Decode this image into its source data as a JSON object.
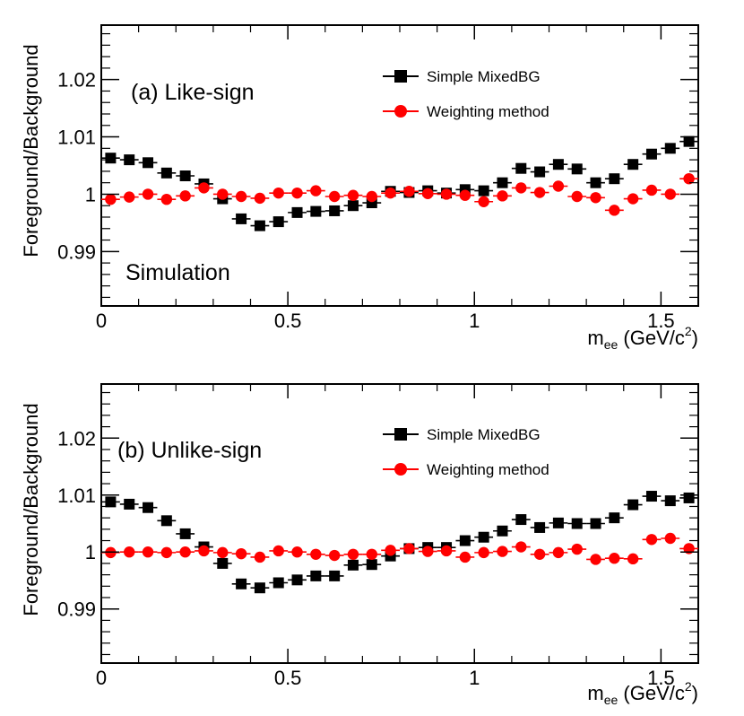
{
  "chart_data": [
    {
      "type": "scatter",
      "panel_label": "(a) Like-sign",
      "annotation": "Simulation",
      "xlabel": {
        "main": "m",
        "sub": "ee",
        "units_pre": " (GeV/c",
        "sup": "2",
        "units_post": ")"
      },
      "ylabel": "Foreground/Background",
      "xlim": [
        0,
        1.6
      ],
      "ylim": [
        0.9805,
        1.0295
      ],
      "x_ticks": [
        0,
        0.5,
        1,
        1.5
      ],
      "x_tick_labels": [
        "0",
        "0.5",
        "1",
        "1.5"
      ],
      "y_ticks": [
        0.99,
        1.0,
        1.01,
        1.02
      ],
      "y_tick_labels": [
        "0.99",
        "1",
        "1.01",
        "1.02"
      ],
      "legend": [
        "Simple MixedBG",
        "Weighting method"
      ],
      "x": [
        0.025,
        0.075,
        0.125,
        0.175,
        0.225,
        0.275,
        0.325,
        0.375,
        0.425,
        0.475,
        0.525,
        0.575,
        0.625,
        0.675,
        0.725,
        0.775,
        0.825,
        0.875,
        0.925,
        0.975,
        1.025,
        1.075,
        1.125,
        1.175,
        1.225,
        1.275,
        1.325,
        1.375,
        1.425,
        1.475,
        1.525,
        1.575
      ],
      "series": [
        {
          "name": "Simple MixedBG",
          "color": "#000000",
          "marker": "square",
          "values": [
            1.0063,
            1.006,
            1.0055,
            1.0037,
            1.0032,
            1.0018,
            0.9992,
            0.9957,
            0.9945,
            0.9952,
            0.9968,
            0.997,
            0.9971,
            0.998,
            0.9985,
            1.0005,
            1.0003,
            1.0006,
            1.0002,
            1.0008,
            1.0006,
            1.002,
            1.0045,
            1.0039,
            1.0052,
            1.0044,
            1.002,
            1.0027,
            1.0052,
            1.007,
            1.008,
            1.0092
          ]
        },
        {
          "name": "Weighting method",
          "color": "#ff0000",
          "marker": "circle",
          "values": [
            0.9991,
            0.9995,
            1.0,
            0.9991,
            0.9997,
            1.0011,
            1.0,
            0.9996,
            0.9993,
            1.0002,
            1.0002,
            1.0006,
            0.9996,
            0.9998,
            0.9996,
            1.0002,
            1.0005,
            1.0001,
            1.0,
            0.9998,
            0.9987,
            0.9997,
            1.0011,
            1.0003,
            1.0014,
            0.9996,
            0.9994,
            0.9972,
            0.9992,
            1.0007,
            1.0,
            1.0027
          ]
        }
      ]
    },
    {
      "type": "scatter",
      "panel_label": "(b) Unlike-sign",
      "xlabel": {
        "main": "m",
        "sub": "ee",
        "units_pre": " (GeV/c",
        "sup": "2",
        "units_post": ")"
      },
      "ylabel": "Foreground/Background",
      "xlim": [
        0,
        1.6
      ],
      "ylim": [
        0.9805,
        1.0295
      ],
      "x_ticks": [
        0,
        0.5,
        1,
        1.5
      ],
      "x_tick_labels": [
        "0",
        "0.5",
        "1",
        "1.5"
      ],
      "y_ticks": [
        0.99,
        1.0,
        1.01,
        1.02
      ],
      "y_tick_labels": [
        "0.99",
        "1",
        "1.01",
        "1.02"
      ],
      "legend": [
        "Simple MixedBG",
        "Weighting method"
      ],
      "x": [
        0.025,
        0.075,
        0.125,
        0.175,
        0.225,
        0.275,
        0.325,
        0.375,
        0.425,
        0.475,
        0.525,
        0.575,
        0.625,
        0.675,
        0.725,
        0.775,
        0.825,
        0.875,
        0.925,
        0.975,
        1.025,
        1.075,
        1.125,
        1.175,
        1.225,
        1.275,
        1.325,
        1.375,
        1.425,
        1.475,
        1.525,
        1.575
      ],
      "series": [
        {
          "name": "Simple MixedBG",
          "color": "#000000",
          "marker": "square",
          "values": [
            1.0088,
            1.0084,
            1.0078,
            1.0055,
            1.0032,
            1.0009,
            0.998,
            0.9944,
            0.9937,
            0.9946,
            0.9951,
            0.9958,
            0.9958,
            0.9977,
            0.9978,
            0.9993,
            1.0006,
            1.0008,
            1.0008,
            1.002,
            1.0026,
            1.0037,
            1.0057,
            1.0043,
            1.0051,
            1.005,
            1.005,
            1.006,
            1.0083,
            1.0098,
            1.009,
            1.0095
          ]
        },
        {
          "name": "Weighting method",
          "color": "#ff0000",
          "marker": "circle",
          "values": [
            0.9999,
            1.0,
            1.0,
            0.9999,
            1.0,
            1.0002,
            0.9999,
            0.9997,
            0.9991,
            1.0002,
            1.0,
            0.9996,
            0.9994,
            0.9996,
            0.9996,
            1.0003,
            1.0006,
            1.0001,
            1.0002,
            0.9991,
            0.9999,
            1.0001,
            1.0009,
            0.9996,
            0.9999,
            1.0005,
            0.9987,
            0.9989,
            0.9988,
            1.0022,
            1.0024,
            1.0006
          ]
        }
      ]
    }
  ]
}
